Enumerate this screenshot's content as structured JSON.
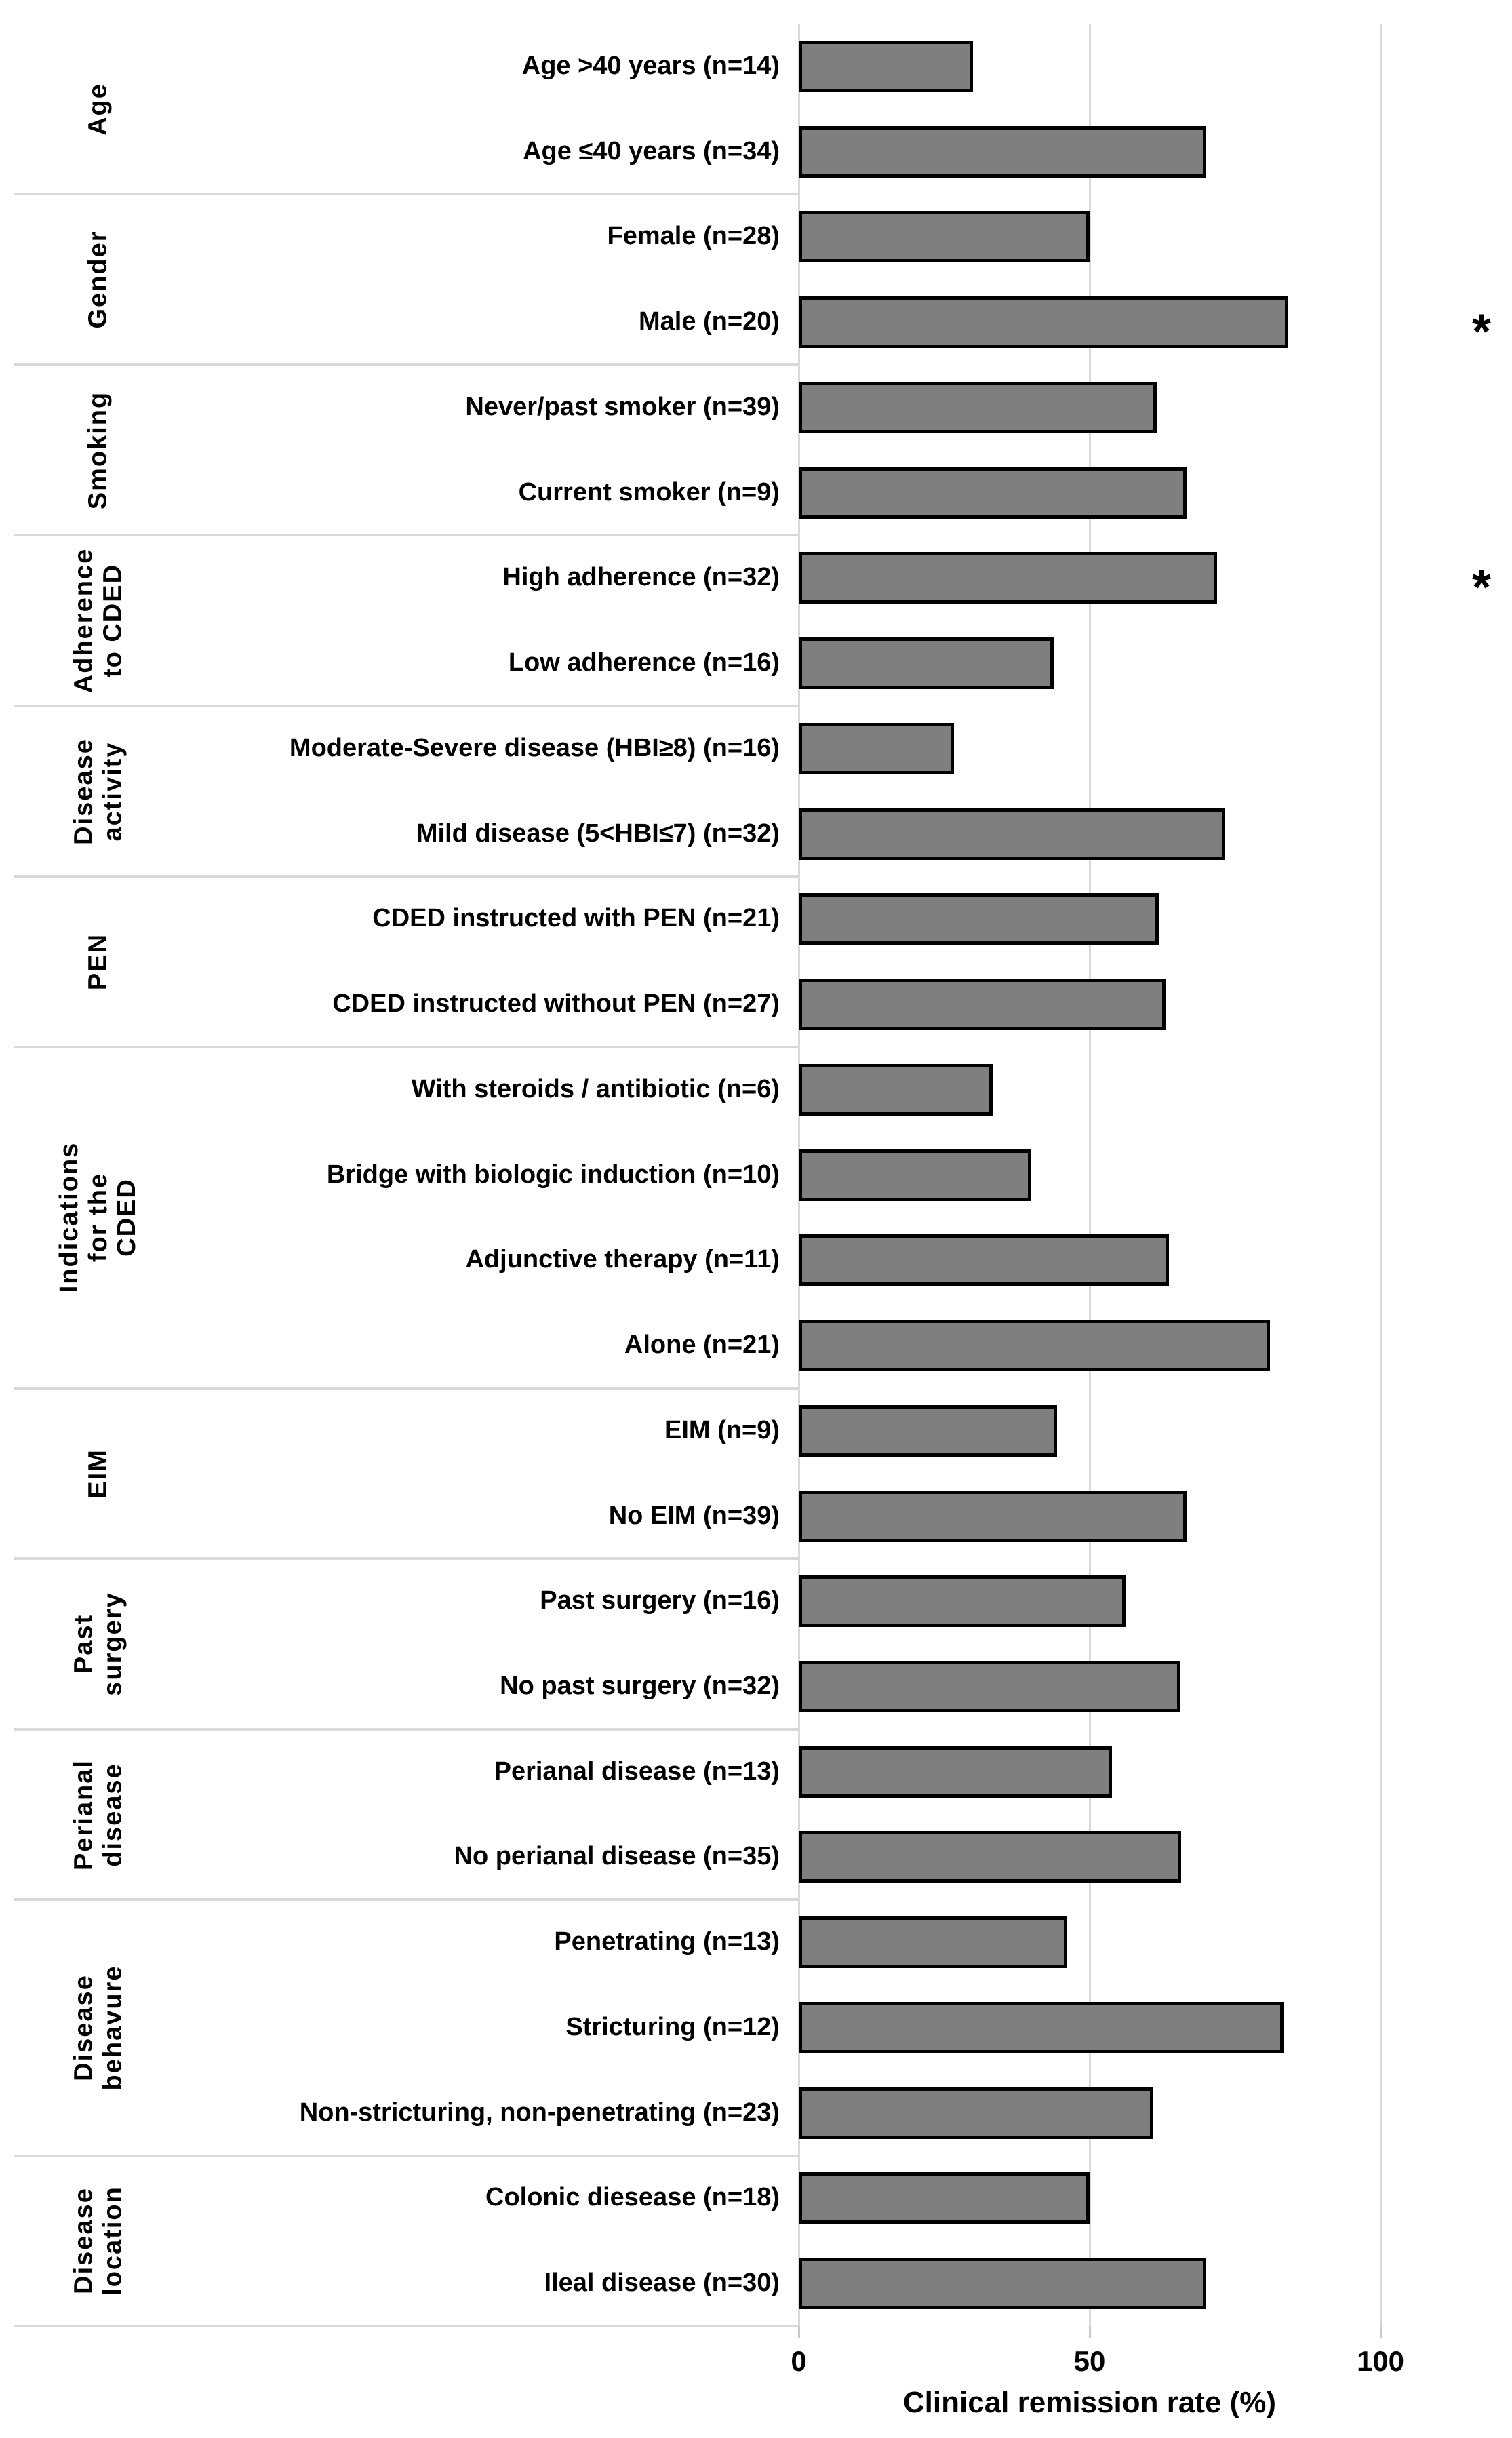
{
  "figure": {
    "background": "#ffffff",
    "text_color": "#000000"
  },
  "chart_data": {
    "type": "bar",
    "orientation": "horizontal",
    "title": "",
    "xlabel": "Clinical remission rate (%)",
    "ylabel": "",
    "xlim": [
      0,
      100
    ],
    "grid": true,
    "legend": "none",
    "bar_color": "#7f7f7f",
    "bar_border_color": "#000000",
    "gridline_color": "#d9d9d9",
    "separator_color": "#d9d9d9",
    "significance_marker": "*",
    "xticks": [
      {
        "label": "0",
        "value": 0
      },
      {
        "label": "50",
        "value": 50
      },
      {
        "label": "100",
        "value": 100
      }
    ],
    "groups": [
      {
        "label": "Age",
        "rows": [
          {
            "label": "Age >40 years (n=14)",
            "value": 30,
            "display": "30"
          },
          {
            "label": "Age ≤40 years (n=34)",
            "value": 70,
            "display": "70"
          }
        ]
      },
      {
        "label": "Gender",
        "rows": [
          {
            "label": "Female (n=28)",
            "value": 50,
            "display": "50"
          },
          {
            "label": "Male (n=20)",
            "value": 84.2,
            "display": "84.2",
            "significant": true
          }
        ]
      },
      {
        "label": "Smoking",
        "rows": [
          {
            "label": "Never/past smoker (n=39)",
            "value": 61.5,
            "display": "61.5"
          },
          {
            "label": "Current smoker (n=9)",
            "value": 66.7,
            "display": "66.7"
          }
        ]
      },
      {
        "label": "Adherence\nto CDED",
        "rows": [
          {
            "label": "High adherence (n=32)",
            "value": 71.9,
            "display": "71.9",
            "significant": true
          },
          {
            "label": "Low adherence (n=16)",
            "value": 43.8,
            "display": "43.8"
          }
        ]
      },
      {
        "label": "Disease\nactivity",
        "rows": [
          {
            "label": "Moderate-Severe disease (HBI≥8) (n=16)",
            "value": 26.7,
            "display": "26.7"
          },
          {
            "label": "Mild disease (5<HBI≤7)  (n=32)",
            "value": 73.3,
            "display": "73.3"
          }
        ]
      },
      {
        "label": "PEN",
        "rows": [
          {
            "label": "CDED instructed with PEN (n=21)",
            "value": 61.9,
            "display": "61.9"
          },
          {
            "label": "CDED instructed without PEN (n=27)",
            "value": 63,
            "display": "63"
          }
        ]
      },
      {
        "label": "Indications for the\nCDED",
        "rows": [
          {
            "label": "With steroids / antibiotic (n=6)",
            "value": 33.3,
            "display": "33.3"
          },
          {
            "label": "Bridge with biologic induction (n=10)",
            "value": 40,
            "display": "40"
          },
          {
            "label": "Adjunctive therapy (n=11)",
            "value": 63.6,
            "display": "63.6"
          },
          {
            "label": "Alone (n=21)",
            "value": 81,
            "display": "81"
          }
        ]
      },
      {
        "label": "EIM",
        "rows": [
          {
            "label": "EIM (n=9)",
            "value": 44.4,
            "display": "44.4"
          },
          {
            "label": "No EIM (n=39)",
            "value": 66.7,
            "display": "66.7"
          }
        ]
      },
      {
        "label": "Past\nsurgery",
        "rows": [
          {
            "label": "Past surgery (n=16)",
            "value": 56.2,
            "display": "56.2"
          },
          {
            "label": "No past surgery (n=32)",
            "value": 65.6,
            "display": "65.6"
          }
        ]
      },
      {
        "label": "Perianal\ndisease",
        "rows": [
          {
            "label": "Perianal disease (n=13)",
            "value": 53.8,
            "display": "53.8"
          },
          {
            "label": "No perianal disease (n=35)",
            "value": 65.7,
            "display": "65.7"
          }
        ]
      },
      {
        "label": "Disease\nbehavure",
        "rows": [
          {
            "label": "Penetrating (n=13)",
            "value": 46.2,
            "display": "46.2"
          },
          {
            "label": "Stricturing (n=12)",
            "value": 83.3,
            "display": "83.3"
          },
          {
            "label": "Non-stricturing, non-penetrating (n=23)",
            "value": 60.9,
            "display": "60.9"
          }
        ]
      },
      {
        "label": "Disease\nlocation",
        "rows": [
          {
            "label": "Colonic diesease (n=18)",
            "value": 50,
            "display": "50"
          },
          {
            "label": "Ileal disease (n=30)",
            "value": 70,
            "display": "70"
          }
        ]
      }
    ]
  }
}
